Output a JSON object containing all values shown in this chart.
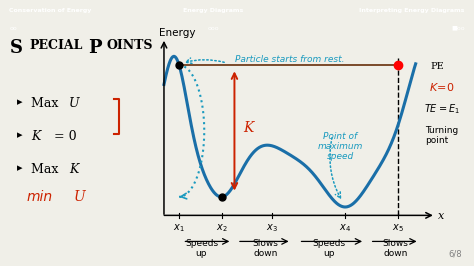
{
  "bg_color": "#f0efe8",
  "header_bg": "#a09ab0",
  "curve_color": "#1a6fa8",
  "te_line_color": "#7a4a2a",
  "annotation_color": "#1a9abf",
  "red_color": "#cc2200",
  "header_left": "Conservation of Energy",
  "header_center": "Energy Diagrams",
  "header_right": "Interpreting Energy Diagrams",
  "header_dots_left": "oo",
  "header_dots_center": "ooo",
  "header_dots_right": "■oo",
  "y_energy_label": "Energy",
  "x_axis_label": "x",
  "particle_label": "Particle starts from rest.",
  "speed_label": "Point of\nmaximum\nspeed",
  "page_num": "6/8",
  "x_positions": [
    0.06,
    0.23,
    0.43,
    0.72,
    0.93
  ]
}
